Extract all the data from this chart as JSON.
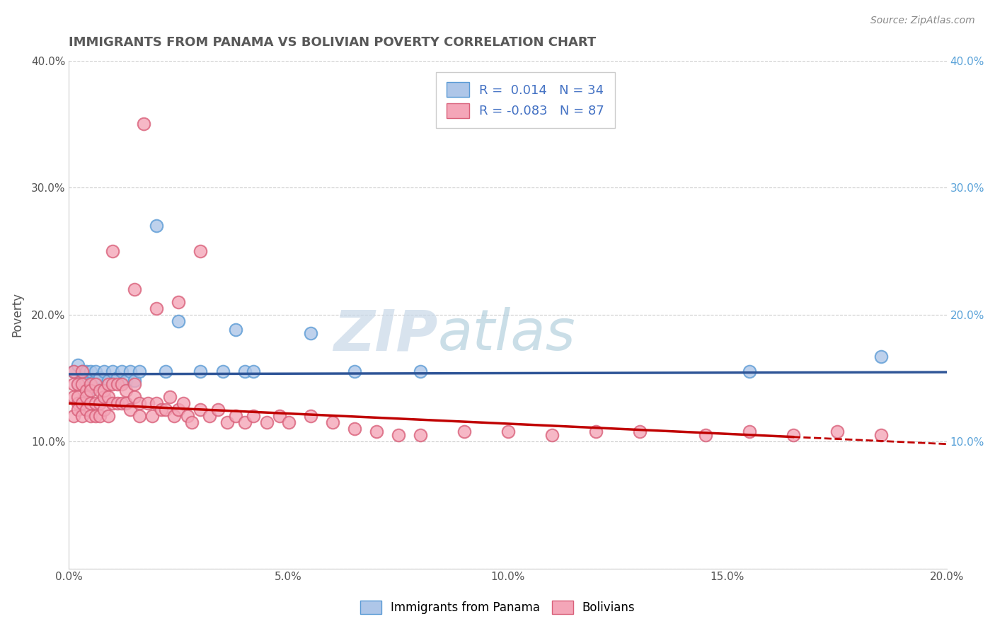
{
  "title": "IMMIGRANTS FROM PANAMA VS BOLIVIAN POVERTY CORRELATION CHART",
  "source": "Source: ZipAtlas.com",
  "xlabel": "",
  "ylabel": "Poverty",
  "xlim": [
    0.0,
    0.2
  ],
  "ylim": [
    0.0,
    0.4
  ],
  "xticks": [
    0.0,
    0.05,
    0.1,
    0.15,
    0.2
  ],
  "xticklabels": [
    "0.0%",
    "5.0%",
    "10.0%",
    "15.0%",
    "20.0%"
  ],
  "yticks": [
    0.0,
    0.1,
    0.2,
    0.3,
    0.4
  ],
  "yticklabels_left": [
    "",
    "10.0%",
    "20.0%",
    "30.0%",
    "40.0%"
  ],
  "yticklabels_right": [
    "",
    "10.0%",
    "20.0%",
    "30.0%",
    "40.0%"
  ],
  "series1_label": "Immigrants from Panama",
  "series1_color": "#aec6e8",
  "series1_edge_color": "#5b9bd5",
  "series1_R": "0.014",
  "series1_N": "34",
  "series2_label": "Bolivians",
  "series2_color": "#f4a6b8",
  "series2_edge_color": "#d9607a",
  "series2_R": "-0.083",
  "series2_N": "87",
  "trend1_color": "#2f5597",
  "trend2_color": "#c00000",
  "watermark_zip": "ZIP",
  "watermark_atlas": "atlas",
  "background_color": "#ffffff",
  "grid_color": "#cccccc",
  "title_color": "#595959",
  "series1_x": [
    0.001,
    0.002,
    0.002,
    0.003,
    0.003,
    0.004,
    0.004,
    0.005,
    0.005,
    0.006,
    0.006,
    0.007,
    0.008,
    0.009,
    0.01,
    0.011,
    0.012,
    0.013,
    0.014,
    0.015,
    0.016,
    0.02,
    0.022,
    0.025,
    0.03,
    0.035,
    0.038,
    0.04,
    0.042,
    0.055,
    0.065,
    0.08,
    0.155,
    0.185
  ],
  "series1_y": [
    0.155,
    0.16,
    0.145,
    0.15,
    0.155,
    0.148,
    0.155,
    0.142,
    0.155,
    0.148,
    0.155,
    0.15,
    0.155,
    0.148,
    0.155,
    0.15,
    0.155,
    0.148,
    0.155,
    0.148,
    0.155,
    0.27,
    0.155,
    0.195,
    0.155,
    0.155,
    0.188,
    0.155,
    0.155,
    0.185,
    0.155,
    0.155,
    0.155,
    0.167
  ],
  "series2_x": [
    0.001,
    0.001,
    0.001,
    0.001,
    0.002,
    0.002,
    0.002,
    0.002,
    0.003,
    0.003,
    0.003,
    0.003,
    0.004,
    0.004,
    0.004,
    0.005,
    0.005,
    0.005,
    0.005,
    0.006,
    0.006,
    0.006,
    0.007,
    0.007,
    0.007,
    0.008,
    0.008,
    0.008,
    0.009,
    0.009,
    0.009,
    0.01,
    0.01,
    0.011,
    0.011,
    0.012,
    0.012,
    0.013,
    0.013,
    0.014,
    0.015,
    0.015,
    0.016,
    0.016,
    0.017,
    0.018,
    0.019,
    0.02,
    0.021,
    0.022,
    0.023,
    0.024,
    0.025,
    0.026,
    0.027,
    0.028,
    0.03,
    0.032,
    0.034,
    0.036,
    0.038,
    0.04,
    0.042,
    0.045,
    0.048,
    0.05,
    0.055,
    0.06,
    0.065,
    0.07,
    0.075,
    0.08,
    0.09,
    0.1,
    0.11,
    0.12,
    0.13,
    0.145,
    0.155,
    0.165,
    0.175,
    0.185,
    0.01,
    0.015,
    0.02,
    0.025,
    0.03
  ],
  "series2_y": [
    0.135,
    0.145,
    0.12,
    0.155,
    0.13,
    0.145,
    0.125,
    0.135,
    0.145,
    0.13,
    0.12,
    0.155,
    0.14,
    0.125,
    0.135,
    0.145,
    0.13,
    0.12,
    0.14,
    0.13,
    0.145,
    0.12,
    0.13,
    0.14,
    0.12,
    0.135,
    0.125,
    0.14,
    0.135,
    0.12,
    0.145,
    0.13,
    0.145,
    0.13,
    0.145,
    0.13,
    0.145,
    0.13,
    0.14,
    0.125,
    0.135,
    0.145,
    0.13,
    0.12,
    0.35,
    0.13,
    0.12,
    0.13,
    0.125,
    0.125,
    0.135,
    0.12,
    0.125,
    0.13,
    0.12,
    0.115,
    0.125,
    0.12,
    0.125,
    0.115,
    0.12,
    0.115,
    0.12,
    0.115,
    0.12,
    0.115,
    0.12,
    0.115,
    0.11,
    0.108,
    0.105,
    0.105,
    0.108,
    0.108,
    0.105,
    0.108,
    0.108,
    0.105,
    0.108,
    0.105,
    0.108,
    0.105,
    0.25,
    0.22,
    0.205,
    0.21,
    0.25
  ],
  "trend1_intercept": 0.153,
  "trend1_slope": 0.008,
  "trend2_intercept": 0.13,
  "trend2_slope": -0.16,
  "trend2_solid_end": 0.165
}
